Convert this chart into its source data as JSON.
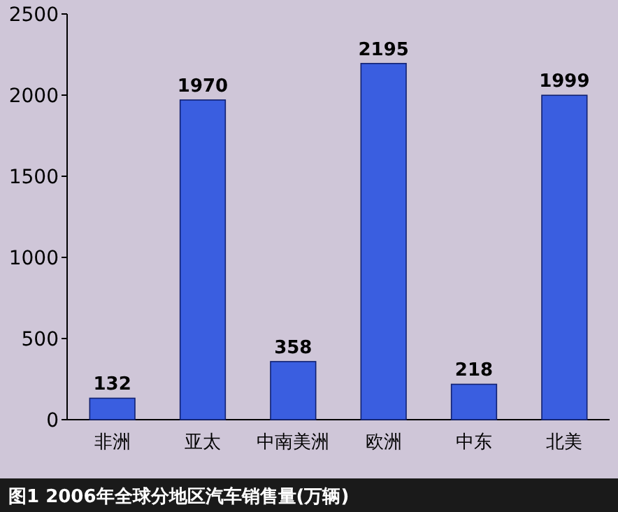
{
  "chart_data": {
    "type": "bar",
    "title": "图1 2006年全球分地区汽车销售量(万辆)",
    "categories": [
      "非洲",
      "亚太",
      "中南美洲",
      "欧洲",
      "中东",
      "北美"
    ],
    "values": [
      132,
      1970,
      358,
      2195,
      218,
      1999
    ],
    "color": "#3a5ee0",
    "ylim": [
      0,
      2500
    ],
    "yticks": [
      0,
      500,
      1000,
      1500,
      2000,
      2500
    ],
    "data_labels": true,
    "grid": false
  }
}
